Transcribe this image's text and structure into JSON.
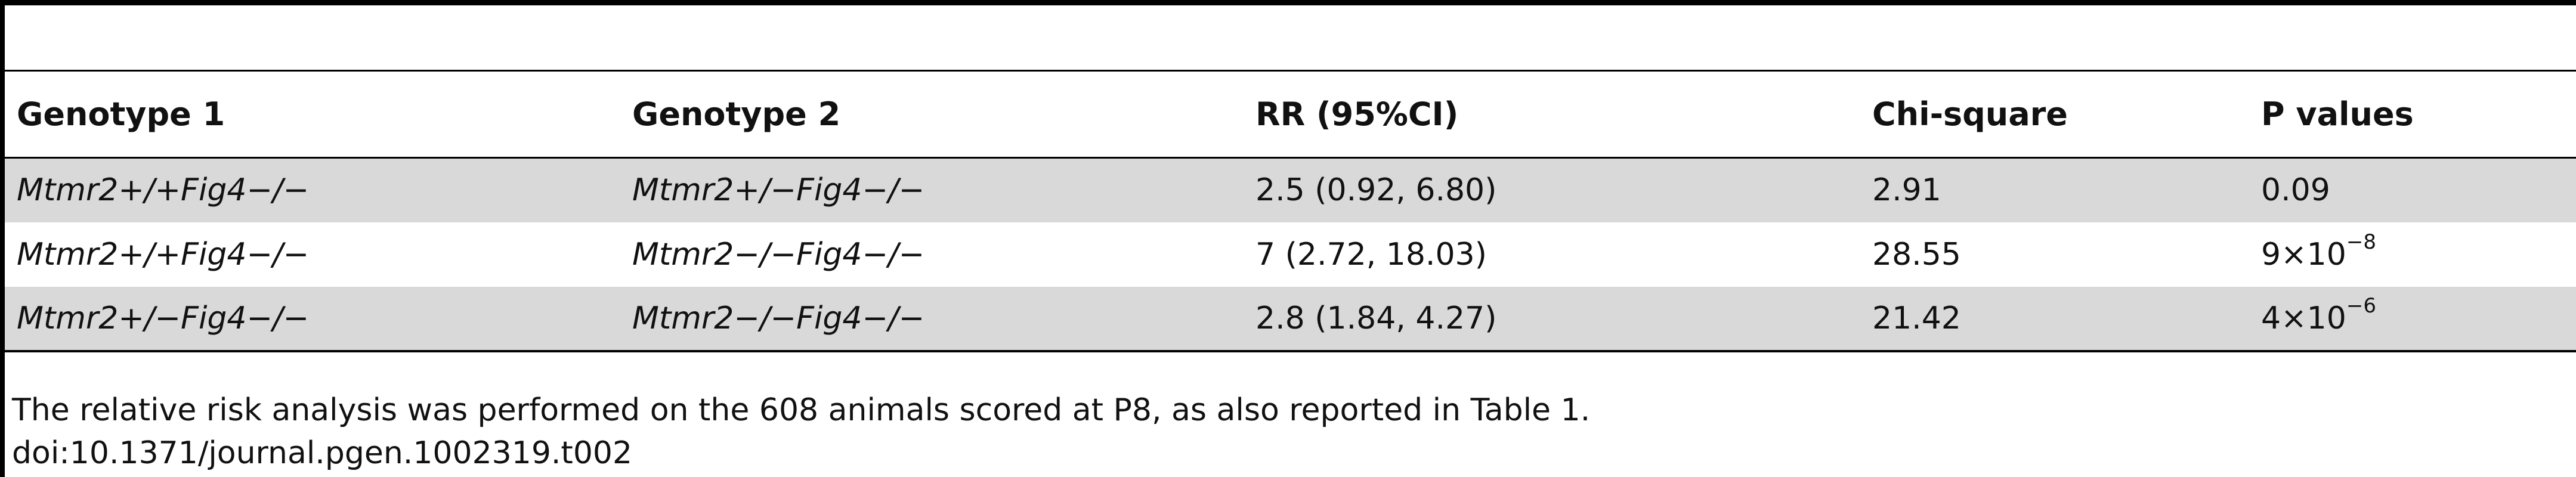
{
  "table": {
    "headers": [
      "Genotype 1",
      "Genotype 2",
      "RR (95%CI)",
      "Chi-square",
      "P values"
    ],
    "rows": [
      {
        "g1": "Mtmr2+/+Fig4−/−",
        "g2": "Mtmr2+/−Fig4−/−",
        "rr": "2.5 (0.92, 6.80)",
        "chi": "2.91",
        "p_base": "0.09",
        "p_exp": ""
      },
      {
        "g1": "Mtmr2+/+Fig4−/−",
        "g2": "Mtmr2−/−Fig4−/−",
        "rr": "7 (2.72, 18.03)",
        "chi": "28.55",
        "p_base": "9×10",
        "p_exp": "−8"
      },
      {
        "g1": "Mtmr2+/−Fig4−/−",
        "g2": "Mtmr2−/−Fig4−/−",
        "rr": "2.8 (1.84, 4.27)",
        "chi": "21.42",
        "p_base": "4×10",
        "p_exp": "−6"
      }
    ]
  },
  "footnote": {
    "note": "The relative risk analysis was performed on the 608 animals scored at P8, as also reported in Table 1.",
    "doi": "doi:10.1371/journal.pgen.1002319.t002"
  }
}
